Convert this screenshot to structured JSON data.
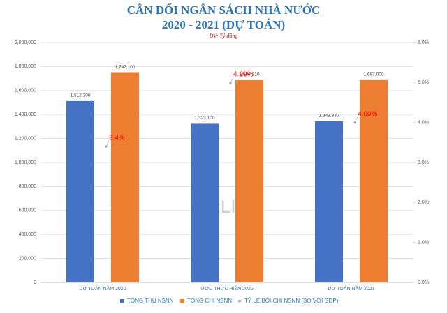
{
  "chart_data": {
    "type": "bar",
    "title": "CÂN ĐỐI NGÂN SÁCH NHÀ NƯỚC",
    "subtitle": "2020 - 2021 (DỰ TOÁN)",
    "unit_note": "ĐV: Tỷ đồng",
    "watermark": "BizLIVE",
    "categories": [
      "DỰ TOÁN NĂM 2020",
      "ƯỚC THỰC HIỆN 2020",
      "DỰ TOÁN NĂM 2021"
    ],
    "series": [
      {
        "name": "TỔNG THU NSNN",
        "color": "#4472c4",
        "values": [
          1512300,
          1323100,
          1343330
        ],
        "value_labels": [
          "1,512,300",
          "1,323,100",
          "1,343,330"
        ]
      },
      {
        "name": "TỔNG CHI NSNN",
        "color": "#ed7d31",
        "values": [
          1747100,
          1686210,
          1687000
        ],
        "value_labels": [
          "1,747,100",
          "1,686,210",
          "1,687,000"
        ]
      },
      {
        "name": "TỶ LỆ BỘI CHI NSNN (SO VỚI GDP)",
        "type": "scatter",
        "axis": "y2",
        "color": "#a5a5a5",
        "label_color": "#ff0000",
        "values": [
          3.4,
          4.99,
          4.0
        ],
        "value_labels": [
          "3.4%",
          "4.99%",
          "4.00%"
        ]
      }
    ],
    "ylim": [
      0,
      2000000
    ],
    "yticks": [
      0,
      {
        "value": 200000,
        "label": "200,000"
      },
      {
        "value": 400000,
        "label": "400,000"
      },
      {
        "value": 600000,
        "label": "600,000"
      },
      {
        "value": 800000,
        "label": "800,000"
      },
      {
        "value": 1000000,
        "label": "1,000,000"
      },
      {
        "value": 1200000,
        "label": "1,200,000"
      },
      {
        "value": 1400000,
        "label": "1,400,000"
      },
      {
        "value": 1600000,
        "label": "1,600,000"
      },
      {
        "value": 1800000,
        "label": "1,800,000"
      },
      {
        "value": 2000000,
        "label": "2,000,000"
      }
    ],
    "y2lim": [
      0,
      6
    ],
    "y2ticks": [
      {
        "value": 0,
        "label": "0.0%"
      },
      {
        "value": 1,
        "label": "1.0%"
      },
      {
        "value": 2,
        "label": "2.0%"
      },
      {
        "value": 3,
        "label": "3.0%"
      },
      {
        "value": 4,
        "label": "4.0%"
      },
      {
        "value": 5,
        "label": "5.0%"
      },
      {
        "value": 6,
        "label": "6.0%"
      }
    ],
    "grid": true
  }
}
